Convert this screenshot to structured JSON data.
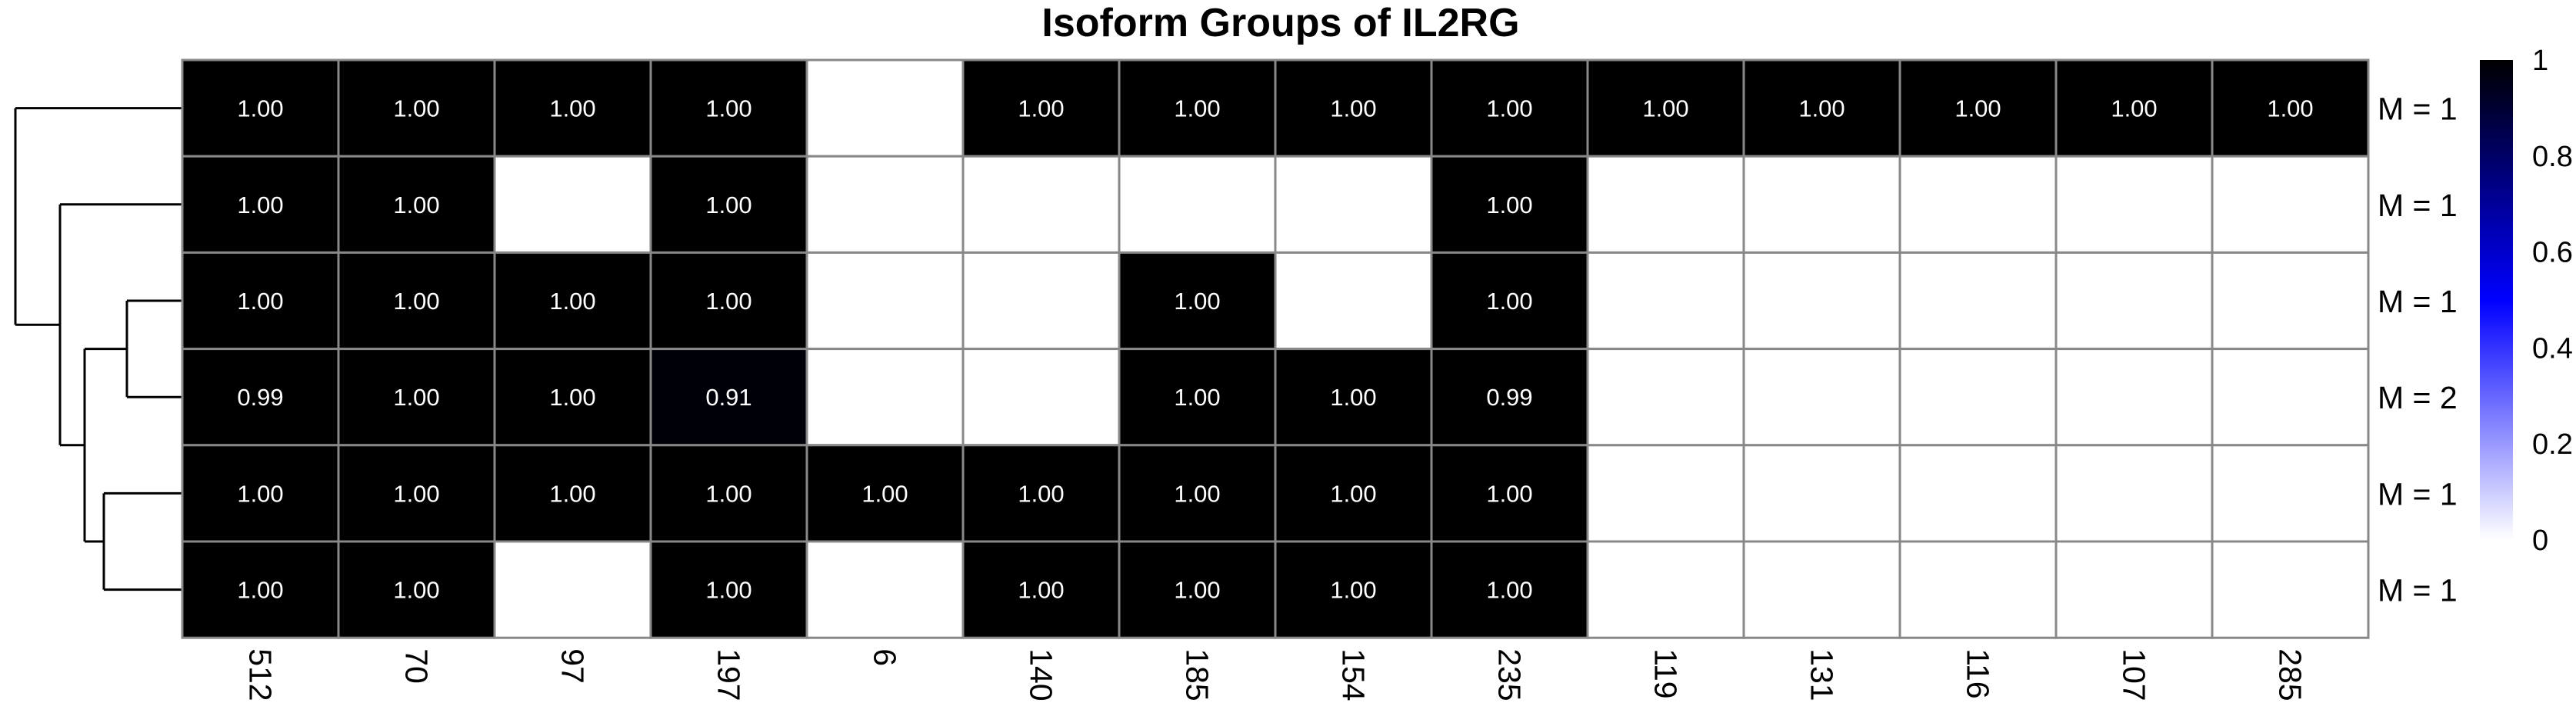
{
  "chart_data": {
    "type": "heatmap",
    "title": "Isoform Groups of IL2RG",
    "columns": [
      "512",
      "70",
      "97",
      "197",
      "6",
      "140",
      "185",
      "154",
      "235",
      "119",
      "131",
      "116",
      "107",
      "285"
    ],
    "row_labels": [
      "M = 1",
      "M = 1",
      "M = 1",
      "M = 2",
      "M = 1",
      "M = 1"
    ],
    "values": [
      [
        1.0,
        1.0,
        1.0,
        1.0,
        null,
        1.0,
        1.0,
        1.0,
        1.0,
        1.0,
        1.0,
        1.0,
        1.0,
        1.0
      ],
      [
        1.0,
        1.0,
        null,
        1.0,
        null,
        null,
        null,
        null,
        1.0,
        null,
        null,
        null,
        null,
        null
      ],
      [
        1.0,
        1.0,
        1.0,
        1.0,
        null,
        null,
        1.0,
        null,
        1.0,
        null,
        null,
        null,
        null,
        null
      ],
      [
        0.99,
        1.0,
        1.0,
        0.91,
        null,
        null,
        1.0,
        1.0,
        0.99,
        null,
        null,
        null,
        null,
        null
      ],
      [
        1.0,
        1.0,
        1.0,
        1.0,
        1.0,
        1.0,
        1.0,
        1.0,
        1.0,
        null,
        null,
        null,
        null,
        null
      ],
      [
        1.0,
        1.0,
        null,
        1.0,
        null,
        1.0,
        1.0,
        1.0,
        1.0,
        null,
        null,
        null,
        null,
        null
      ]
    ],
    "cell_labels": [
      [
        "1.00",
        "1.00",
        "1.00",
        "1.00",
        "",
        "1.00",
        "1.00",
        "1.00",
        "1.00",
        "1.00",
        "1.00",
        "1.00",
        "1.00",
        "1.00"
      ],
      [
        "1.00",
        "1.00",
        "",
        "1.00",
        "",
        "",
        "",
        "",
        "1.00",
        "",
        "",
        "",
        "",
        ""
      ],
      [
        "1.00",
        "1.00",
        "1.00",
        "1.00",
        "",
        "",
        "1.00",
        "",
        "1.00",
        "",
        "",
        "",
        "",
        ""
      ],
      [
        "0.99",
        "1.00",
        "1.00",
        "0.91",
        "",
        "",
        "1.00",
        "1.00",
        "0.99",
        "",
        "",
        "",
        "",
        ""
      ],
      [
        "1.00",
        "1.00",
        "1.00",
        "1.00",
        "1.00",
        "1.00",
        "1.00",
        "1.00",
        "1.00",
        "",
        "",
        "",
        "",
        ""
      ],
      [
        "1.00",
        "1.00",
        "",
        "1.00",
        "",
        "1.00",
        "1.00",
        "1.00",
        "1.00",
        "",
        "",
        "",
        "",
        ""
      ]
    ],
    "color_scale": {
      "min": 0,
      "max": 1,
      "low_color": "#ffffff",
      "mid_color": "#0000ff",
      "high_color": "#000000",
      "ticks": [
        "0",
        "0.2",
        "0.4",
        "0.6",
        "0.8",
        "1"
      ]
    },
    "legend_placement": "right",
    "dendrogram": "left (rows)",
    "grid_color": "#888888"
  }
}
